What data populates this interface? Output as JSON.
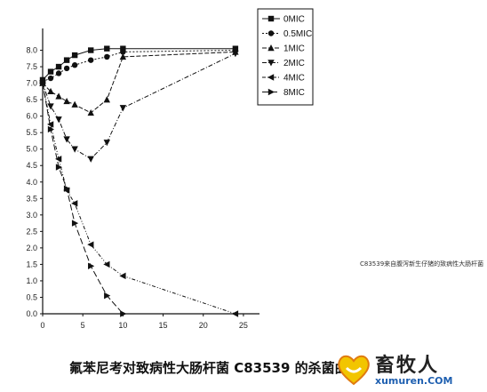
{
  "chart_data": {
    "type": "line",
    "title": "",
    "xlabel": "",
    "ylabel": "",
    "xlim": [
      0,
      27
    ],
    "ylim": [
      0.0,
      8.5
    ],
    "x_ticks": [
      0,
      5,
      10,
      15,
      20,
      25
    ],
    "y_ticks": [
      0.0,
      0.5,
      1.0,
      1.5,
      2.0,
      2.5,
      3.0,
      3.5,
      4.0,
      4.5,
      5.0,
      5.5,
      6.0,
      6.5,
      7.0,
      7.5,
      8.0
    ],
    "x_tick_labels": [
      "0",
      "5",
      "10",
      "15",
      "20",
      "25"
    ],
    "y_tick_labels": [
      "0.0",
      "0.5",
      "1.0",
      "1.5",
      "2.0",
      "2.5",
      "3.0",
      "3.5",
      "4.0",
      "4.5",
      "5.0",
      "5.5",
      "6.0",
      "6.5",
      "7.0",
      "7.5",
      "8.0"
    ],
    "legend_position": "top-right",
    "series": [
      {
        "name": "0MIC",
        "marker": "square",
        "dash": "",
        "x": [
          0,
          1,
          2,
          3,
          4,
          6,
          8,
          10,
          24
        ],
        "y": [
          7.1,
          7.35,
          7.5,
          7.7,
          7.85,
          8.0,
          8.05,
          8.05,
          8.05
        ]
      },
      {
        "name": "0.5MIC",
        "marker": "circle",
        "dash": "2,2",
        "x": [
          0,
          1,
          2,
          3,
          4,
          6,
          8,
          10,
          24
        ],
        "y": [
          7.05,
          7.15,
          7.3,
          7.45,
          7.55,
          7.7,
          7.8,
          7.95,
          8.0
        ]
      },
      {
        "name": "1MIC",
        "marker": "triangle-up",
        "dash": "5,2",
        "x": [
          0,
          1,
          2,
          3,
          4,
          6,
          8,
          10,
          24
        ],
        "y": [
          7.0,
          6.75,
          6.6,
          6.45,
          6.35,
          6.1,
          6.5,
          7.8,
          7.95
        ]
      },
      {
        "name": "2MIC",
        "marker": "triangle-down",
        "dash": "5,2,1,2",
        "x": [
          0,
          1,
          2,
          3,
          4,
          6,
          8,
          10,
          24
        ],
        "y": [
          7.0,
          6.3,
          5.9,
          5.3,
          5.0,
          4.7,
          5.2,
          6.25,
          7.9
        ]
      },
      {
        "name": "4MIC",
        "marker": "triangle-left",
        "dash": "4,2,1,2,1,2",
        "x": [
          0,
          1,
          2,
          3,
          4,
          6,
          8,
          10,
          24
        ],
        "y": [
          7.0,
          5.75,
          4.7,
          3.75,
          3.35,
          2.1,
          1.5,
          1.15,
          0.0
        ]
      },
      {
        "name": "8MIC",
        "marker": "triangle-right",
        "dash": "7,3",
        "x": [
          0,
          1,
          2,
          3,
          4,
          6,
          8,
          10
        ],
        "y": [
          7.0,
          5.6,
          4.45,
          3.8,
          2.75,
          1.45,
          0.55,
          0.0
        ]
      }
    ]
  },
  "side_note": "C83539来自腹泻新生仔猪的致病性大肠杆菌",
  "caption": "氟苯尼考对致病性大肠杆菌 C83539 的杀菌曲线",
  "watermark": {
    "name_cn": "畜牧人",
    "url": "xumuren.COM"
  },
  "colors": {
    "axis": "#111111",
    "line": "#111111",
    "watermark_blue": "#1e5fb0",
    "logo_yellow": "#f2c500",
    "logo_orange": "#e07a10"
  }
}
